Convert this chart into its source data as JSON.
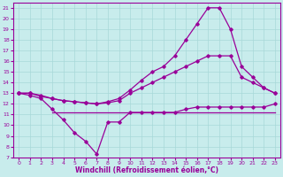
{
  "xlabel": "Windchill (Refroidissement éolien,°C)",
  "ylabel": "",
  "background_color": "#c8ecec",
  "grid_color": "#a8d8d8",
  "line_color": "#990099",
  "xlim": [
    -0.5,
    23.5
  ],
  "ylim": [
    7,
    21.5
  ],
  "xticks": [
    0,
    1,
    2,
    3,
    4,
    5,
    6,
    7,
    8,
    9,
    10,
    11,
    12,
    13,
    14,
    15,
    16,
    17,
    18,
    19,
    20,
    21,
    22,
    23
  ],
  "yticks": [
    7,
    8,
    9,
    10,
    11,
    12,
    13,
    14,
    15,
    16,
    17,
    18,
    19,
    20,
    21
  ],
  "line1_x": [
    0,
    1,
    2,
    3,
    4,
    5,
    6,
    7,
    8,
    9,
    10,
    11,
    12,
    13,
    14,
    15,
    16,
    17,
    18,
    19,
    20,
    21,
    22,
    23
  ],
  "line1_y": [
    13.0,
    12.8,
    12.5,
    11.5,
    10.5,
    9.3,
    8.5,
    7.3,
    10.3,
    10.3,
    11.2,
    11.2,
    11.2,
    11.2,
    11.2,
    11.5,
    11.7,
    11.7,
    11.7,
    11.7,
    11.7,
    11.7,
    11.7,
    12.0
  ],
  "line2_x": [
    0,
    1,
    2,
    3,
    4,
    5,
    6,
    7,
    8,
    9,
    10,
    11,
    12,
    13,
    14,
    15,
    16,
    17,
    18,
    19,
    20,
    21,
    22,
    23
  ],
  "line2_y": [
    13.0,
    13.0,
    12.7,
    12.5,
    12.3,
    12.2,
    12.1,
    12.0,
    12.1,
    12.3,
    13.0,
    13.5,
    14.0,
    14.5,
    15.0,
    15.5,
    16.0,
    16.5,
    16.5,
    16.5,
    14.5,
    14.0,
    13.5,
    13.0
  ],
  "line3_x": [
    0,
    1,
    2,
    3,
    4,
    5,
    6,
    7,
    8,
    9,
    10,
    11,
    12,
    13,
    14,
    15,
    16,
    17,
    18,
    19,
    20,
    21,
    22,
    23
  ],
  "line3_y": [
    13.0,
    13.0,
    12.8,
    12.5,
    12.3,
    12.2,
    12.1,
    12.0,
    12.2,
    12.5,
    13.3,
    14.2,
    15.0,
    15.5,
    16.5,
    18.0,
    19.5,
    21.0,
    21.0,
    19.0,
    15.5,
    14.5,
    13.5,
    13.0
  ],
  "line4_x": [
    3,
    4,
    5,
    6,
    7,
    8,
    9,
    10,
    11,
    12,
    13,
    14,
    15,
    16,
    17,
    18,
    19,
    20,
    21,
    22,
    23
  ],
  "line4_y": [
    11.2,
    11.2,
    11.2,
    11.2,
    11.2,
    11.2,
    11.2,
    11.2,
    11.2,
    11.2,
    11.2,
    11.2,
    11.2,
    11.2,
    11.2,
    11.2,
    11.2,
    11.2,
    11.2,
    11.2,
    11.2
  ],
  "marker": "D",
  "marker_size": 1.8,
  "line_width": 0.9,
  "font_color": "#990099",
  "tick_fontsize": 4.5,
  "xlabel_fontsize": 5.5
}
